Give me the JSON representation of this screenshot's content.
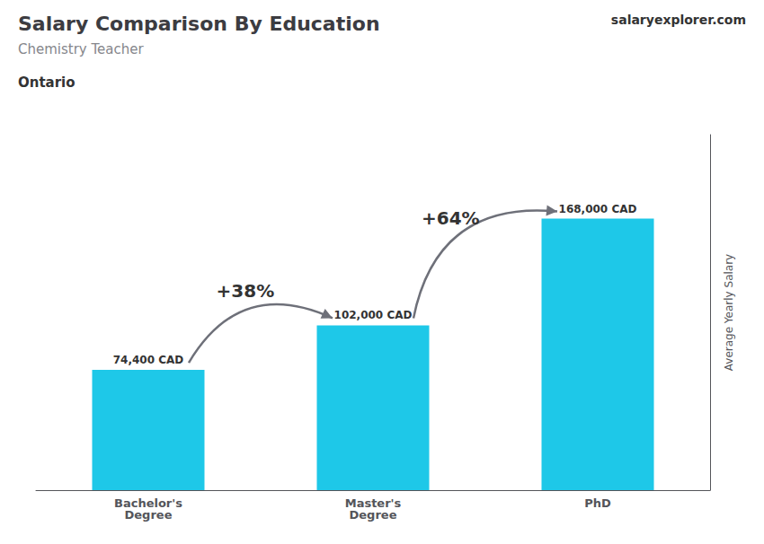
{
  "chart_data": {
    "type": "bar",
    "title": "Salary Comparison By Education",
    "subtitle": "Chemistry Teacher",
    "annotations": [
      "Ontario",
      "salaryexplorer.com"
    ],
    "change_labels": [
      "+38%",
      "+64%"
    ],
    "ylabel": "Average Yearly Salary",
    "categories": [
      "Bachelor's\nDegree",
      "Master's\nDegree",
      "PhD"
    ],
    "values": [
      74400,
      102000,
      168000
    ],
    "value_labels": [
      "74,400 CAD",
      "102,000 CAD",
      "168,000 CAD"
    ],
    "data_labels": true,
    "color": "#1ec8e8",
    "ylim": [
      0,
      220000
    ],
    "yticks": [],
    "tick_labels": "x",
    "grid": false
  }
}
